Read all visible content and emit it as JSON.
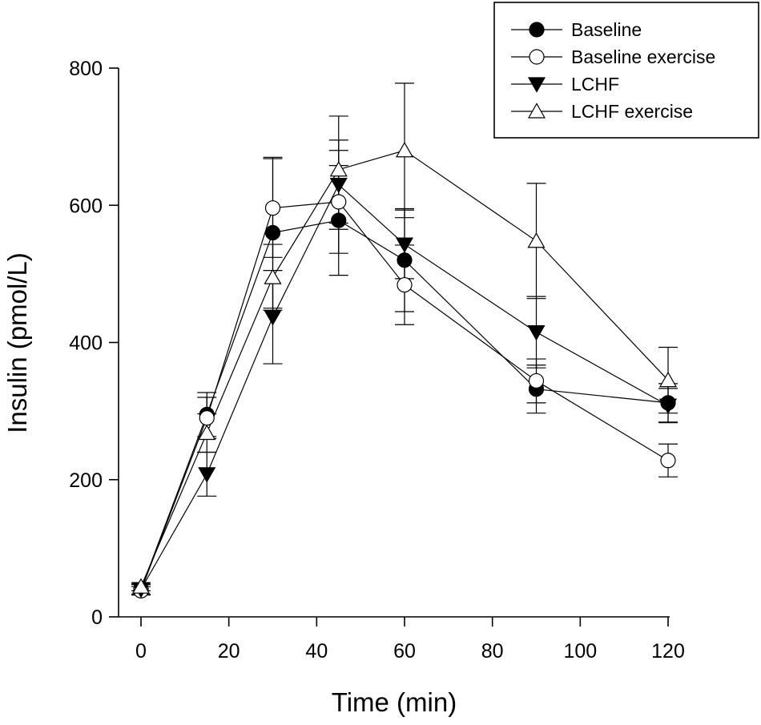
{
  "chart_data": {
    "type": "line",
    "title": "",
    "xlabel": "Time (min)",
    "ylabel": "Insulin (pmol/L)",
    "xlim": [
      -5,
      120
    ],
    "ylim": [
      0,
      800
    ],
    "xticks": [
      0,
      20,
      40,
      60,
      80,
      100,
      120
    ],
    "yticks": [
      0,
      200,
      400,
      600,
      800
    ],
    "x": [
      0,
      15,
      30,
      45,
      60,
      90,
      120
    ],
    "legend_position": "top-right",
    "grid": false,
    "series": [
      {
        "name": "Baseline",
        "marker": "circle-filled",
        "values": [
          40,
          295,
          560,
          578,
          520,
          332,
          312
        ],
        "error": [
          8,
          32,
          110,
          80,
          75,
          35,
          28
        ]
      },
      {
        "name": "Baseline exercise",
        "marker": "circle-open",
        "values": [
          38,
          290,
          596,
          605,
          484,
          344,
          228
        ],
        "error": [
          6,
          30,
          72,
          75,
          58,
          32,
          24
        ]
      },
      {
        "name": "LCHF",
        "marker": "triangle-down-filled",
        "values": [
          40,
          208,
          437,
          630,
          543,
          415,
          308
        ],
        "error": [
          7,
          32,
          68,
          65,
          50,
          52,
          25
        ]
      },
      {
        "name": "LCHF exercise",
        "marker": "triangle-up-open",
        "values": [
          44,
          268,
          495,
          652,
          680,
          548,
          345
        ],
        "error": [
          6,
          28,
          48,
          78,
          98,
          84,
          48
        ]
      }
    ]
  }
}
